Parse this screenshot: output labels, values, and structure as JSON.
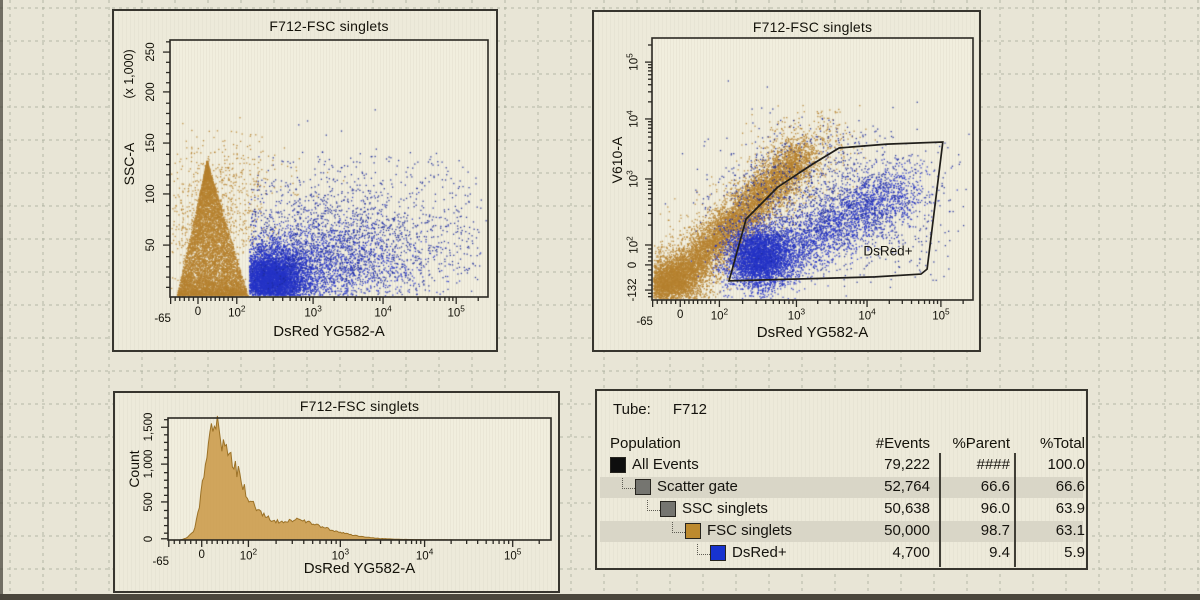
{
  "colors": {
    "tan": "#b5812f",
    "tan_light": "#bb8836",
    "blue": "#2433c6",
    "navy": "#1b2a9a",
    "hist_fill": "#cc9c4e",
    "hist_stroke": "#9c7227",
    "table_band": "#d9d6c7",
    "frame": "#2b2923",
    "gate": "#201e1a"
  },
  "chart_data": [
    {
      "type": "scatter",
      "id": "ssc-vs-dsred",
      "title": "F712-FSC singlets",
      "xlabel": "DsRed YG582-A",
      "ylabel": "SSC-A",
      "y_units": "(x 1,000)",
      "x_scale": "biexponential",
      "y_scale": "linear",
      "x_range": [
        "-65",
        "262,144"
      ],
      "y_range": [
        0,
        262
      ],
      "x_ticks": [
        {
          "f": 0.002,
          "t": "-65"
        },
        {
          "f": 0.088,
          "t": "0"
        },
        {
          "f": 0.21,
          "t": "10^2"
        },
        {
          "f": 0.45,
          "t": "10^3"
        },
        {
          "f": 0.67,
          "t": "10^4"
        },
        {
          "f": 0.9,
          "t": "10^5"
        }
      ],
      "y_ticks": [
        {
          "f": 0.047,
          "t": "250"
        },
        {
          "f": 0.202,
          "t": "200"
        },
        {
          "f": 0.401,
          "t": "150"
        },
        {
          "f": 0.599,
          "t": "100"
        },
        {
          "f": 0.798,
          "t": "50"
        }
      ],
      "populations": [
        {
          "name": "FSC singlets",
          "color": "#b5812f"
        },
        {
          "name": "DsRed+",
          "color": "#2433c6"
        }
      ],
      "clusters": [
        {
          "type": "wedge",
          "color": "#b5812f",
          "n": 7500,
          "x0": 0.02,
          "x1": 0.245,
          "apex_x": 0.115,
          "top_f": 0.47,
          "bottom_f": 0.995,
          "bias": 1.9
        },
        {
          "type": "cloud",
          "color": "#bb8836",
          "n": 900,
          "cx": 0.13,
          "cy": 0.72,
          "sx": 0.075,
          "sy": 0.14
        },
        {
          "type": "cloud",
          "color": "#b5812f",
          "n": 130,
          "cx": 0.22,
          "cy": 0.52,
          "sx": 0.1,
          "sy": 0.07
        },
        {
          "type": "cloud",
          "color": "#2433c6",
          "n": 5200,
          "cx": 0.315,
          "cy": 0.93,
          "sx": 0.055,
          "sy": 0.055,
          "clip_x0": 0.248
        },
        {
          "type": "cloud",
          "color": "#2433c6",
          "n": 2600,
          "cx": 0.42,
          "cy": 0.88,
          "sx": 0.16,
          "sy": 0.09,
          "clip_x0": 0.248
        },
        {
          "type": "cloud",
          "color": "#1b2a9a",
          "n": 1400,
          "cx": 0.55,
          "cy": 0.78,
          "sx": 0.21,
          "sy": 0.13,
          "clip_x0": 0.25
        },
        {
          "type": "uniform",
          "color": "#1b2a9a",
          "n": 380,
          "x0": 0.25,
          "x1": 0.97,
          "y0": 0.45,
          "y1": 0.95
        }
      ]
    },
    {
      "type": "scatter",
      "id": "v610-vs-dsred",
      "title": "F712-FSC singlets",
      "xlabel": "DsRed YG582-A",
      "ylabel": "V610-A",
      "x_scale": "biexponential",
      "y_scale": "biexponential",
      "x_ticks": [
        {
          "f": 0.002,
          "t": "-65"
        },
        {
          "f": 0.088,
          "t": "0"
        },
        {
          "f": 0.21,
          "t": "10^2"
        },
        {
          "f": 0.45,
          "t": "10^3"
        },
        {
          "f": 0.67,
          "t": "10^4"
        },
        {
          "f": 0.9,
          "t": "10^5"
        }
      ],
      "y_ticks": [
        {
          "f": 0.092,
          "t": "10^5"
        },
        {
          "f": 0.309,
          "t": "10^4"
        },
        {
          "f": 0.538,
          "t": "10^3"
        },
        {
          "f": 0.79,
          "t": "10^2"
        },
        {
          "f": 0.866,
          "t": "0"
        },
        {
          "f": 0.962,
          "t": "-132"
        }
      ],
      "gate": {
        "label": "DsRed+",
        "label_pos_f": [
          0.735,
          0.83
        ],
        "vertices_f": [
          [
            0.24,
            0.927
          ],
          [
            0.293,
            0.691
          ],
          [
            0.392,
            0.569
          ],
          [
            0.501,
            0.481
          ],
          [
            0.583,
            0.42
          ],
          [
            0.732,
            0.405
          ],
          [
            0.906,
            0.397
          ],
          [
            0.857,
            0.882
          ],
          [
            0.838,
            0.901
          ],
          [
            0.695,
            0.912
          ]
        ]
      },
      "clusters": [
        {
          "type": "band",
          "color": "#b5812f",
          "n": 6800,
          "x0": 0.035,
          "y0": 0.965,
          "x1": 0.47,
          "y1": 0.44,
          "sigma": 0.035
        },
        {
          "type": "cloud",
          "color": "#b5812f",
          "n": 2300,
          "cx": 0.05,
          "cy": 0.93,
          "sx": 0.055,
          "sy": 0.05
        },
        {
          "type": "band",
          "color": "#bb8836",
          "n": 1300,
          "x0": 0.03,
          "y0": 0.97,
          "x1": 0.5,
          "y1": 0.42,
          "sigma": 0.07
        },
        {
          "type": "cloud",
          "color": "#b5812f",
          "n": 160,
          "cx": 0.5,
          "cy": 0.36,
          "sx": 0.07,
          "sy": 0.05
        },
        {
          "type": "cloud",
          "color": "#2433c6",
          "n": 3300,
          "cx": 0.33,
          "cy": 0.83,
          "sx": 0.05,
          "sy": 0.06
        },
        {
          "type": "band",
          "color": "#2433c6",
          "n": 3000,
          "x0": 0.3,
          "y0": 0.9,
          "x1": 0.78,
          "y1": 0.57,
          "sigma": 0.055
        },
        {
          "type": "cloud",
          "color": "#1b2a9a",
          "n": 1100,
          "cx": 0.55,
          "cy": 0.6,
          "sx": 0.18,
          "sy": 0.13
        },
        {
          "type": "uniform",
          "color": "#1b2a9a",
          "n": 260,
          "x0": 0.25,
          "x1": 0.93,
          "y0": 0.4,
          "y1": 0.93
        }
      ]
    },
    {
      "type": "histogram",
      "id": "dsred-histogram",
      "title": "F712-FSC singlets",
      "xlabel": "DsRed YG582-A",
      "ylabel": "Count",
      "x_scale": "biexponential",
      "y_scale": "linear",
      "ylim": [
        0,
        1630
      ],
      "x_ticks": [
        {
          "f": 0.002,
          "t": "-65"
        },
        {
          "f": 0.088,
          "t": "0"
        },
        {
          "f": 0.21,
          "t": "10^2"
        },
        {
          "f": 0.45,
          "t": "10^3"
        },
        {
          "f": 0.67,
          "t": "10^4"
        },
        {
          "f": 0.9,
          "t": "10^5"
        }
      ],
      "y_ticks": [
        {
          "f": 0.076,
          "t": "1,500"
        },
        {
          "f": 0.378,
          "t": "1,000"
        },
        {
          "f": 0.688,
          "t": "500"
        },
        {
          "f": 0.99,
          "t": "0"
        }
      ],
      "fill": "#cc9c4e",
      "stroke": "#9c7227",
      "profile": [
        [
          0.031,
          0
        ],
        [
          0.0496,
          30
        ],
        [
          0.0679,
          120
        ],
        [
          0.081,
          400
        ],
        [
          0.094,
          900
        ],
        [
          0.104,
          1300
        ],
        [
          0.112,
          1600
        ],
        [
          0.12,
          1350
        ],
        [
          0.128,
          1550
        ],
        [
          0.138,
          1300
        ],
        [
          0.149,
          1400
        ],
        [
          0.159,
          1100
        ],
        [
          0.172,
          1000
        ],
        [
          0.188,
          850
        ],
        [
          0.206,
          600
        ],
        [
          0.225,
          450
        ],
        [
          0.24,
          380
        ],
        [
          0.253,
          330
        ],
        [
          0.272,
          260
        ],
        [
          0.292,
          240
        ],
        [
          0.311,
          260
        ],
        [
          0.329,
          270
        ],
        [
          0.35,
          255
        ],
        [
          0.371,
          230
        ],
        [
          0.389,
          200
        ],
        [
          0.407,
          170
        ],
        [
          0.428,
          130
        ],
        [
          0.454,
          95
        ],
        [
          0.486,
          60
        ],
        [
          0.52,
          35
        ],
        [
          0.559,
          18
        ],
        [
          0.611,
          8
        ],
        [
          0.689,
          3
        ],
        [
          0.794,
          1
        ],
        [
          0.87,
          0
        ]
      ]
    },
    {
      "type": "table",
      "id": "population-hierarchy",
      "tube_label": "Tube:",
      "tube": "F712",
      "columns": [
        "Population",
        "#Events",
        "%Parent",
        "%Total"
      ],
      "rows": [
        {
          "population": "All Events",
          "events": "79,222",
          "pct_parent": "####",
          "pct_total": "100.0",
          "level": 0,
          "swatch": "#0e0e0e",
          "shaded": false
        },
        {
          "population": "Scatter gate",
          "events": "52,764",
          "pct_parent": "66.6",
          "pct_total": "66.6",
          "level": 1,
          "swatch": "#757570",
          "shaded": true
        },
        {
          "population": "SSC singlets",
          "events": "50,638",
          "pct_parent": "96.0",
          "pct_total": "63.9",
          "level": 2,
          "swatch": "#757570",
          "shaded": false
        },
        {
          "population": "FSC singlets",
          "events": "50,000",
          "pct_parent": "98.7",
          "pct_total": "63.1",
          "level": 3,
          "swatch": "#bd8a2e",
          "shaded": true
        },
        {
          "population": "DsRed+",
          "events": "4,700",
          "pct_parent": "9.4",
          "pct_total": "5.9",
          "level": 4,
          "swatch": "#1733cf",
          "shaded": false
        }
      ]
    }
  ]
}
